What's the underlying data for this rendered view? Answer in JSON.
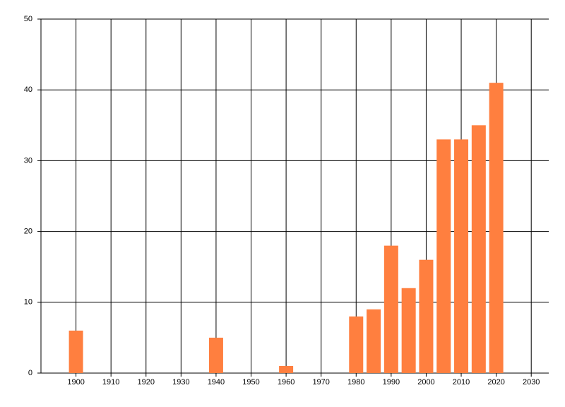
{
  "chart_data": {
    "type": "bar",
    "x": [
      1900,
      1940,
      1960,
      1980,
      1985,
      1990,
      1995,
      2000,
      2005,
      2010,
      2015,
      2020
    ],
    "values": [
      6,
      5,
      1,
      8,
      9,
      18,
      12,
      16,
      33,
      33,
      35,
      41
    ],
    "color": "#ff7f3f",
    "xlim": [
      1890,
      2035
    ],
    "xticks": [
      1900,
      1910,
      1920,
      1930,
      1940,
      1950,
      1960,
      1970,
      1980,
      1990,
      2000,
      2010,
      2020,
      2030
    ],
    "ylim": [
      0,
      50
    ],
    "yticks": [
      0,
      10,
      20,
      30,
      40,
      50
    ],
    "grid": true
  }
}
